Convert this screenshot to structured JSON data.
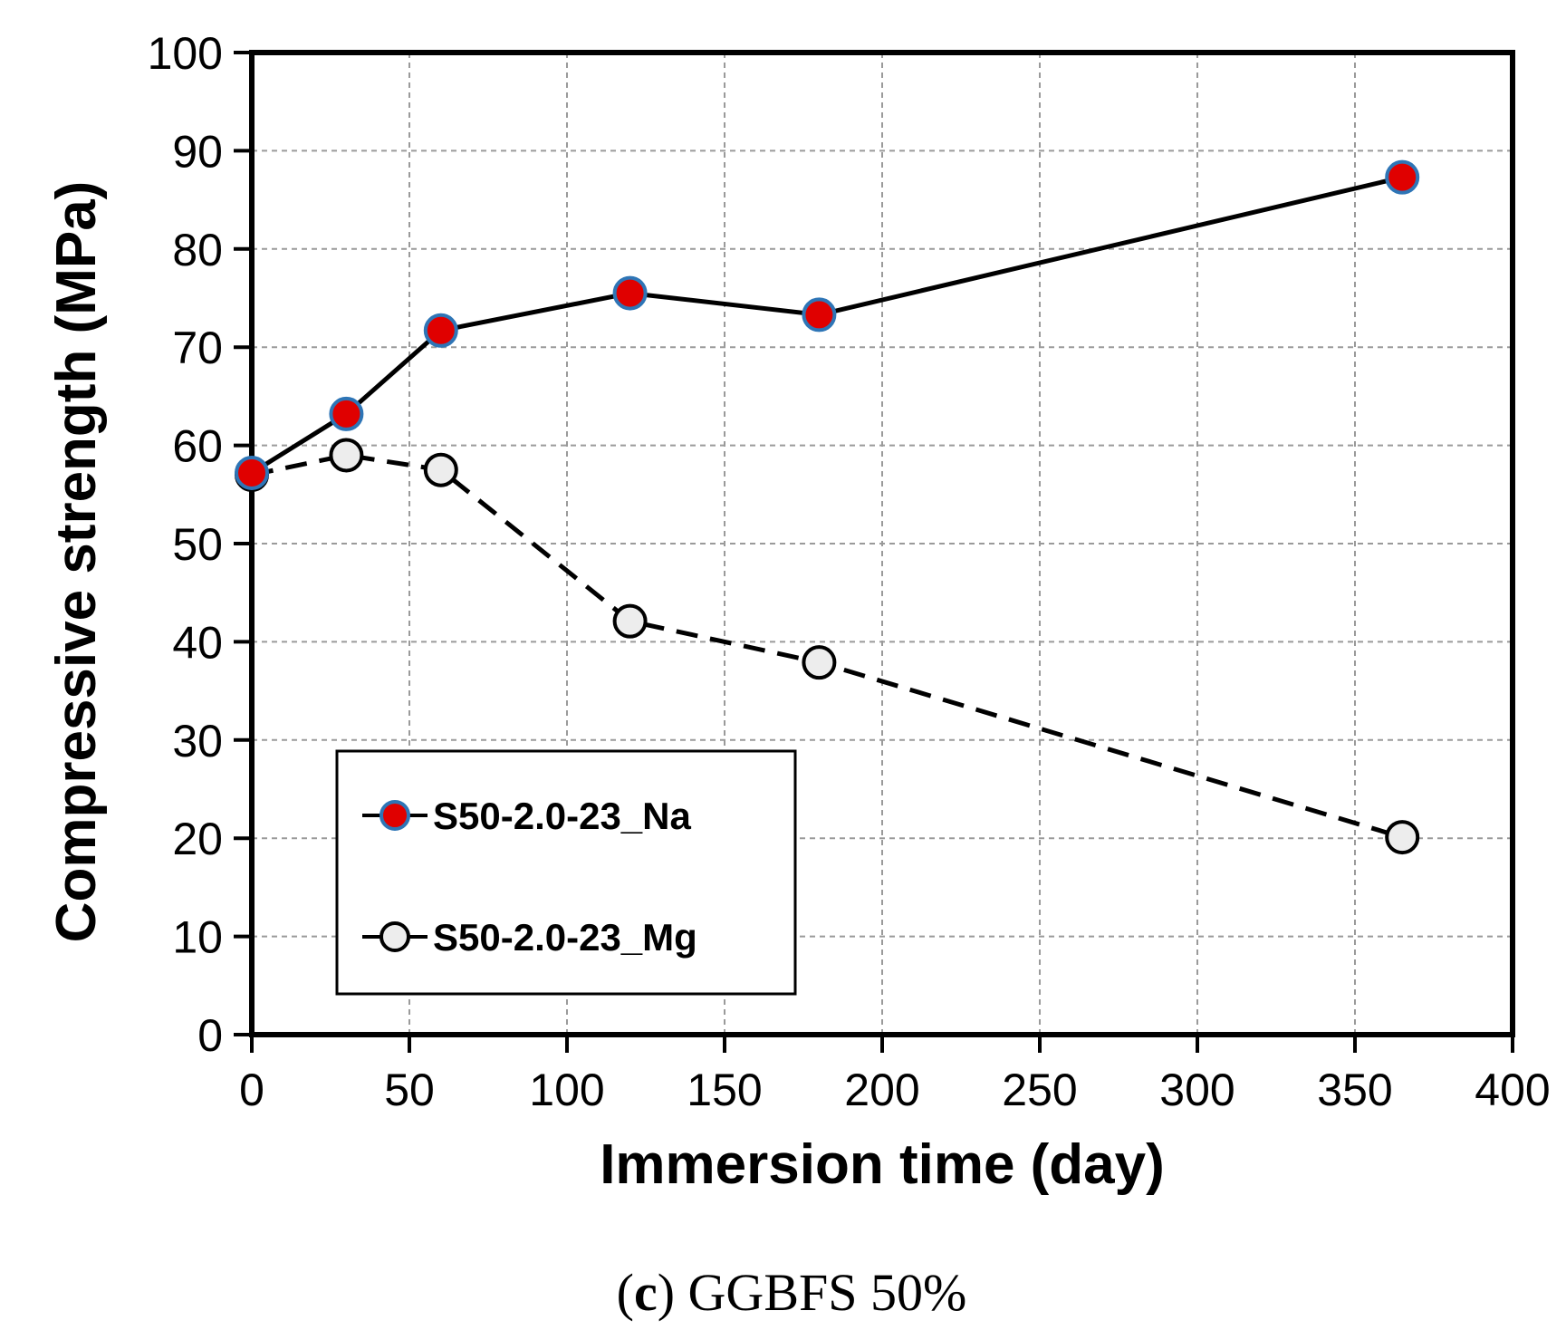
{
  "chart_data": {
    "type": "line",
    "title": "",
    "xlabel": "Immersion time (day)",
    "ylabel": "Compressive strength (MPa)",
    "xlim": [
      0,
      400
    ],
    "ylim": [
      0,
      100
    ],
    "xticks": [
      0,
      50,
      100,
      150,
      200,
      250,
      300,
      350,
      400
    ],
    "yticks": [
      0,
      10,
      20,
      30,
      40,
      50,
      60,
      70,
      80,
      90,
      100
    ],
    "grid": true,
    "legend_position": "bottom-left",
    "series": [
      {
        "name": "S50-2.0-23_Na",
        "line_style": "solid",
        "marker_fill": "#e00000",
        "marker_edge": "#2e75b6",
        "x": [
          0,
          30,
          60,
          120,
          180,
          365
        ],
        "y": [
          57.2,
          63.2,
          71.7,
          75.5,
          73.3,
          87.3
        ]
      },
      {
        "name": "S50-2.0-23_Mg",
        "line_style": "dashed",
        "marker_fill": "#ededed",
        "marker_edge": "#000000",
        "x": [
          0,
          30,
          60,
          120,
          180,
          365
        ],
        "y": [
          57.0,
          59.0,
          57.5,
          42.1,
          37.9,
          20.1
        ]
      }
    ]
  },
  "caption": {
    "open_paren": "(",
    "letter": "c",
    "close_paren": ")",
    "text": " GGBFS 50%"
  }
}
